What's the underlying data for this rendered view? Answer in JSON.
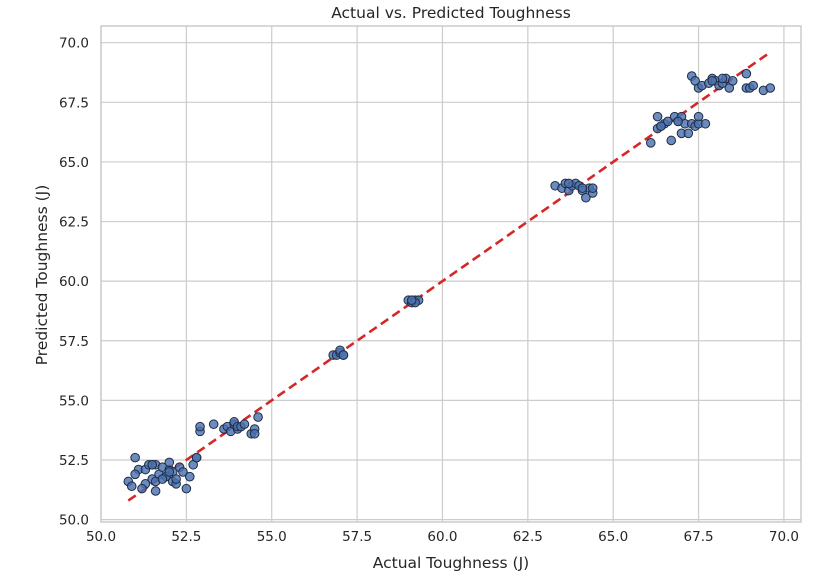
{
  "chart_data": {
    "type": "scatter",
    "title": "Actual vs. Predicted Toughness",
    "xlabel": "Actual Toughness (J)",
    "ylabel": "Predicted Toughness (J)",
    "xlim": [
      50.0,
      70.5
    ],
    "ylim": [
      49.9,
      70.7
    ],
    "xticks": [
      50.0,
      52.5,
      55.0,
      57.5,
      60.0,
      62.5,
      65.0,
      67.5,
      70.0
    ],
    "yticks": [
      50.0,
      52.5,
      55.0,
      57.5,
      60.0,
      62.5,
      65.0,
      67.5,
      70.0
    ],
    "xtick_labels": [
      "50.0",
      "52.5",
      "55.0",
      "57.5",
      "60.0",
      "62.5",
      "65.0",
      "67.5",
      "70.0"
    ],
    "ytick_labels": [
      "50.0",
      "52.5",
      "55.0",
      "57.5",
      "60.0",
      "62.5",
      "65.0",
      "67.5",
      "70.0"
    ],
    "grid": true,
    "style": {
      "point_fill": "#4c72b0",
      "point_edge": "#1f2d44",
      "reference_line_color": "#d62728",
      "grid_color": "#cccccc",
      "frame_color": "#cccccc"
    },
    "reference_line": {
      "style": "dashed",
      "x": [
        50.8,
        69.6
      ],
      "y": [
        50.8,
        69.6
      ]
    },
    "points": {
      "x": [
        50.8,
        50.9,
        51.0,
        51.1,
        51.3,
        51.3,
        51.4,
        51.5,
        51.5,
        51.6,
        51.6,
        51.7,
        51.8,
        51.9,
        52.0,
        52.0,
        52.1,
        52.1,
        52.2,
        52.3,
        52.4,
        52.5,
        52.6,
        52.7,
        52.8,
        51.2,
        51.6,
        51.9,
        52.2,
        51.0,
        51.5,
        51.8,
        52.0,
        52.8,
        52.9,
        52.9,
        53.3,
        53.6,
        53.7,
        53.8,
        53.9,
        53.9,
        54.0,
        54.0,
        54.1,
        54.2,
        54.4,
        54.5,
        54.6,
        54.5,
        56.8,
        56.9,
        57.0,
        57.0,
        57.1,
        57.1,
        59.0,
        59.1,
        59.2,
        59.3,
        59.2,
        59.1,
        63.3,
        63.5,
        63.6,
        63.7,
        63.8,
        63.9,
        64.0,
        64.1,
        64.2,
        64.3,
        64.4,
        64.4,
        64.1,
        63.7,
        66.1,
        66.3,
        66.3,
        66.4,
        66.5,
        66.6,
        66.7,
        66.8,
        66.9,
        67.0,
        67.0,
        67.1,
        67.2,
        67.3,
        67.4,
        67.5,
        67.5,
        67.7,
        66.4,
        66.9,
        67.3,
        67.4,
        67.5,
        67.6,
        67.8,
        67.9,
        68.0,
        68.1,
        68.2,
        68.3,
        68.4,
        68.5,
        68.9,
        68.9,
        69.0,
        69.1,
        69.4,
        69.6,
        67.9,
        68.2
      ],
      "y": [
        51.6,
        51.4,
        52.6,
        52.1,
        51.5,
        52.1,
        52.3,
        51.7,
        52.3,
        51.2,
        52.3,
        51.9,
        52.2,
        51.8,
        52.1,
        52.4,
        51.6,
        52.0,
        51.5,
        52.2,
        52.0,
        51.3,
        51.8,
        52.3,
        52.6,
        51.3,
        51.6,
        51.8,
        51.7,
        51.9,
        52.3,
        51.7,
        52.0,
        52.6,
        53.7,
        53.9,
        54.0,
        53.8,
        53.9,
        53.7,
        54.0,
        54.1,
        53.8,
        53.9,
        53.9,
        54.0,
        53.6,
        53.8,
        54.3,
        53.6,
        56.9,
        56.9,
        57.0,
        57.1,
        56.9,
        56.9,
        59.2,
        59.1,
        59.2,
        59.2,
        59.1,
        59.2,
        64.0,
        63.9,
        64.1,
        63.8,
        64.0,
        64.1,
        64.0,
        63.8,
        63.5,
        63.9,
        63.7,
        63.9,
        63.9,
        64.1,
        65.8,
        66.4,
        66.9,
        66.5,
        66.6,
        66.7,
        65.9,
        66.9,
        66.7,
        66.2,
        66.9,
        66.6,
        66.2,
        66.6,
        66.5,
        66.6,
        66.9,
        66.6,
        66.5,
        66.7,
        68.6,
        68.4,
        68.1,
        68.2,
        68.3,
        68.5,
        68.4,
        68.2,
        68.3,
        68.5,
        68.1,
        68.4,
        68.7,
        68.1,
        68.1,
        68.2,
        68.0,
        68.1,
        68.4,
        68.5
      ]
    }
  }
}
